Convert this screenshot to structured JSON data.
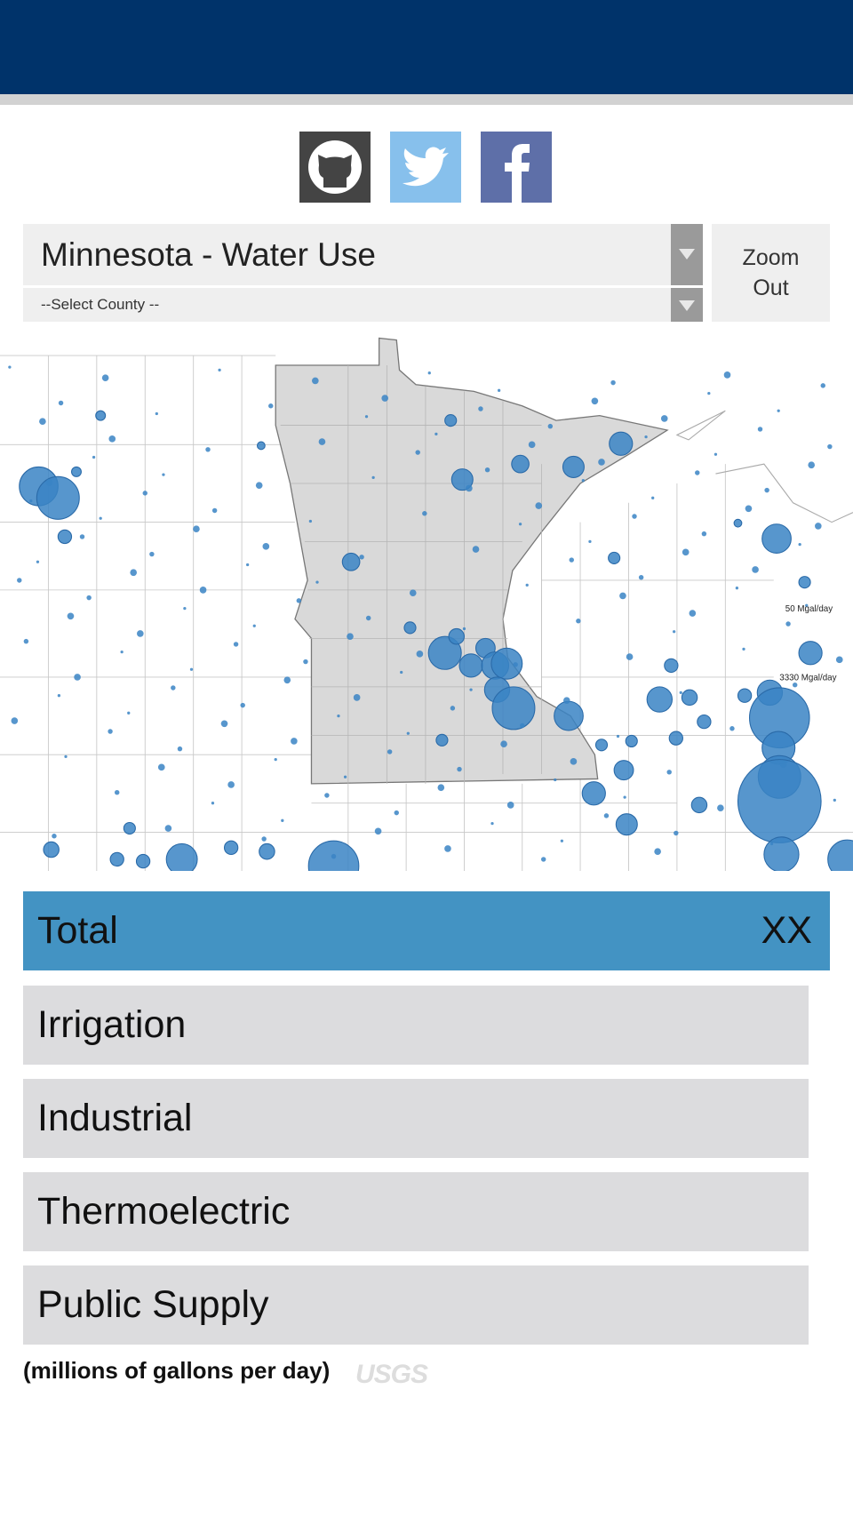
{
  "controls": {
    "state_select": "Minnesota - Water Use",
    "county_select": "--Select County --",
    "zoom_button": "Zoom Out"
  },
  "map": {
    "legend": [
      "50 Mgal/day",
      "3330 Mgal/day"
    ]
  },
  "categories": [
    {
      "label": "Total",
      "value": "XX"
    },
    {
      "label": "Irrigation"
    },
    {
      "label": "Industrial"
    },
    {
      "label": "Thermoelectric"
    },
    {
      "label": "Public Supply"
    }
  ],
  "units_note": "(millions of gallons per day)",
  "footer_logo": "USGS"
}
